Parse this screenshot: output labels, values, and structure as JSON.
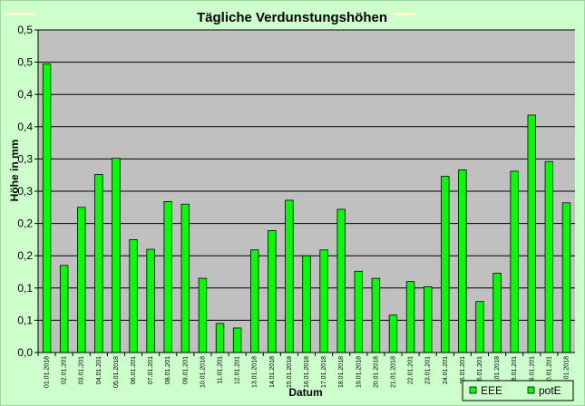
{
  "chart_data": {
    "type": "bar",
    "title": "Tägliche Verdunstungshöhen",
    "xlabel": "Datum",
    "ylabel": "Höhe in mm",
    "ylim": [
      0,
      0.5
    ],
    "yticks": [
      "0,0",
      "0,1",
      "0,1",
      "0,2",
      "0,2",
      "0,3",
      "0,3",
      "0,4",
      "0,4",
      "0,5",
      "0,5"
    ],
    "grid": true,
    "legend": "bottom-right",
    "legend_entries": [
      "EEE",
      "potE"
    ],
    "colors": {
      "bar": "#00ff00",
      "bar_border": "#000000",
      "plot_bg": "#c0c0c0",
      "background": "#ccffcc"
    },
    "categories": [
      "01.01.2018",
      "02.01.201",
      "03.01.201",
      "04.01.201",
      "05.01.2018",
      "06.01.201",
      "07.01.201",
      "08.01.201",
      "09.01.201",
      "10.01.2018",
      "11.01.201",
      "12.01.201",
      "13.01.2018",
      "14.01.2018",
      "15.01.2018",
      "16.01.2018",
      "17.01.2018",
      "18.01.2018",
      "19.01.2018",
      "20.01.2018",
      "21.01.2018",
      "22.01.201",
      "23.01.201",
      "24.01.201",
      "25.01.201",
      "26.01.201",
      "27.01.2018",
      "28.01.201",
      "29.01.201",
      "30.01.201",
      "31.01.2018"
    ],
    "series": [
      {
        "name": "potE",
        "values": [
          0.447,
          0.135,
          0.225,
          0.276,
          0.301,
          0.175,
          0.16,
          0.234,
          0.23,
          0.115,
          0.045,
          0.038,
          0.159,
          0.189,
          0.236,
          0.15,
          0.159,
          0.222,
          0.126,
          0.115,
          0.058,
          0.11,
          0.102,
          0.273,
          0.283,
          0.079,
          0.123,
          0.281,
          0.368,
          0.296,
          0.232
        ]
      }
    ]
  }
}
